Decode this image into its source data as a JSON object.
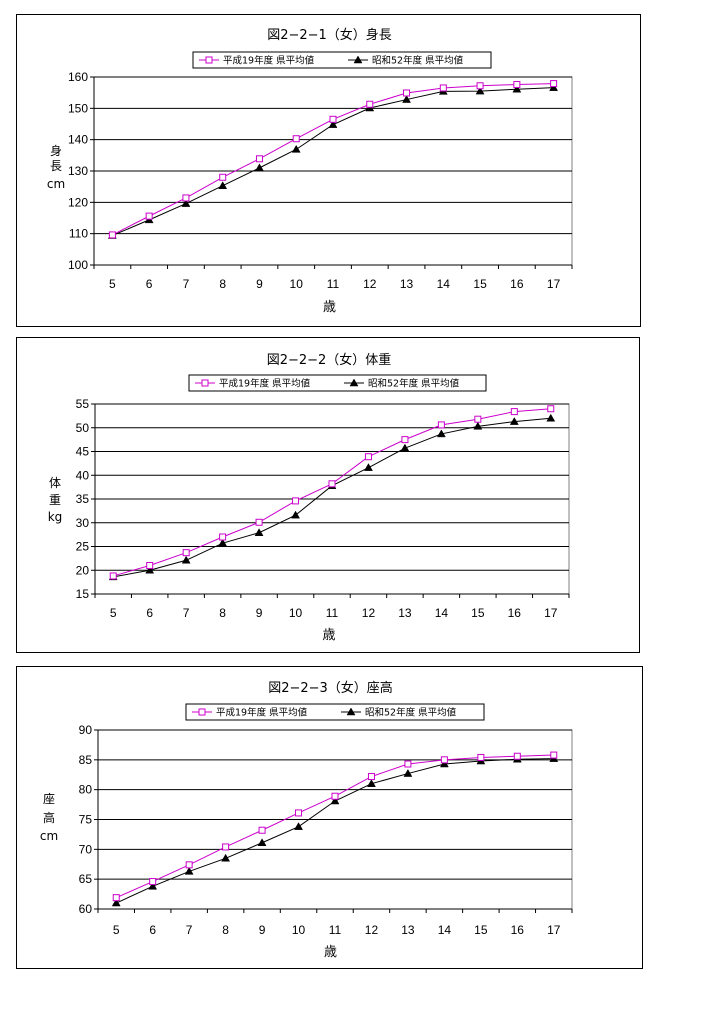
{
  "colors": {
    "series_2019": "#cc00cc",
    "series_1977": "#000000",
    "grid": "#000000",
    "plot_bg": "#ffffff"
  },
  "chart_data": [
    {
      "type": "line",
      "title": "図2−2−1（女）身長",
      "xlabel": "歳",
      "ylabel_chars": [
        "身",
        "長"
      ],
      "ylabel_unit": "cm",
      "categories": [
        "5",
        "6",
        "7",
        "8",
        "9",
        "10",
        "11",
        "12",
        "13",
        "14",
        "15",
        "16",
        "17"
      ],
      "ylim": [
        100,
        160
      ],
      "yticks": [
        100,
        110,
        120,
        130,
        140,
        150,
        160
      ],
      "grid": true,
      "legend": "top",
      "series": [
        {
          "name": "平成19年度 県平均値",
          "marker": "hollow-square",
          "color": "#cc00cc",
          "values": [
            109.6,
            115.6,
            121.4,
            128.0,
            133.9,
            140.3,
            146.5,
            151.3,
            154.9,
            156.5,
            157.2,
            157.6,
            157.9
          ]
        },
        {
          "name": "昭和52年度 県平均値",
          "marker": "filled-triangle",
          "color": "#000000",
          "values": [
            109.4,
            114.4,
            119.6,
            125.3,
            131.0,
            136.9,
            144.8,
            150.1,
            152.8,
            155.4,
            155.5,
            156.1,
            156.6
          ]
        }
      ]
    },
    {
      "type": "line",
      "title": "図2−2−2（女）体重",
      "xlabel": "歳",
      "ylabel_chars": [
        "体",
        "重"
      ],
      "ylabel_unit": "kg",
      "categories": [
        "5",
        "6",
        "7",
        "8",
        "9",
        "10",
        "11",
        "12",
        "13",
        "14",
        "15",
        "16",
        "17"
      ],
      "ylim": [
        15,
        55
      ],
      "yticks": [
        15,
        20,
        25,
        30,
        35,
        40,
        45,
        50,
        55
      ],
      "grid": true,
      "legend": "top",
      "series": [
        {
          "name": "平成19年度 県平均値",
          "marker": "hollow-square",
          "color": "#cc00cc",
          "values": [
            18.8,
            21.0,
            23.7,
            27.0,
            30.1,
            34.6,
            38.2,
            43.9,
            47.5,
            50.6,
            51.8,
            53.4,
            54.0
          ]
        },
        {
          "name": "昭和52年度 県平均値",
          "marker": "filled-triangle",
          "color": "#000000",
          "values": [
            18.6,
            20.0,
            22.1,
            25.7,
            27.9,
            31.6,
            37.8,
            41.6,
            45.7,
            48.7,
            50.3,
            51.3,
            52.0
          ]
        }
      ]
    },
    {
      "type": "line",
      "title": "図2−2−3（女）座高",
      "xlabel": "歳",
      "ylabel_chars": [
        "座",
        "高"
      ],
      "ylabel_unit": "cm",
      "categories": [
        "5",
        "6",
        "7",
        "8",
        "9",
        "10",
        "11",
        "12",
        "13",
        "14",
        "15",
        "16",
        "17"
      ],
      "ylim": [
        60,
        90
      ],
      "yticks": [
        60,
        65,
        70,
        75,
        80,
        85,
        90
      ],
      "grid": true,
      "legend": "top",
      "series": [
        {
          "name": "平成19年度 県平均値",
          "marker": "hollow-square",
          "color": "#cc00cc",
          "values": [
            61.9,
            64.6,
            67.4,
            70.4,
            73.2,
            76.1,
            78.9,
            82.2,
            84.3,
            85.0,
            85.4,
            85.6,
            85.8
          ]
        },
        {
          "name": "昭和52年度 県平均値",
          "marker": "filled-triangle",
          "color": "#000000",
          "values": [
            61.0,
            63.8,
            66.3,
            68.5,
            71.1,
            73.8,
            78.1,
            81.0,
            82.7,
            84.3,
            84.8,
            85.1,
            85.2
          ]
        }
      ]
    }
  ]
}
